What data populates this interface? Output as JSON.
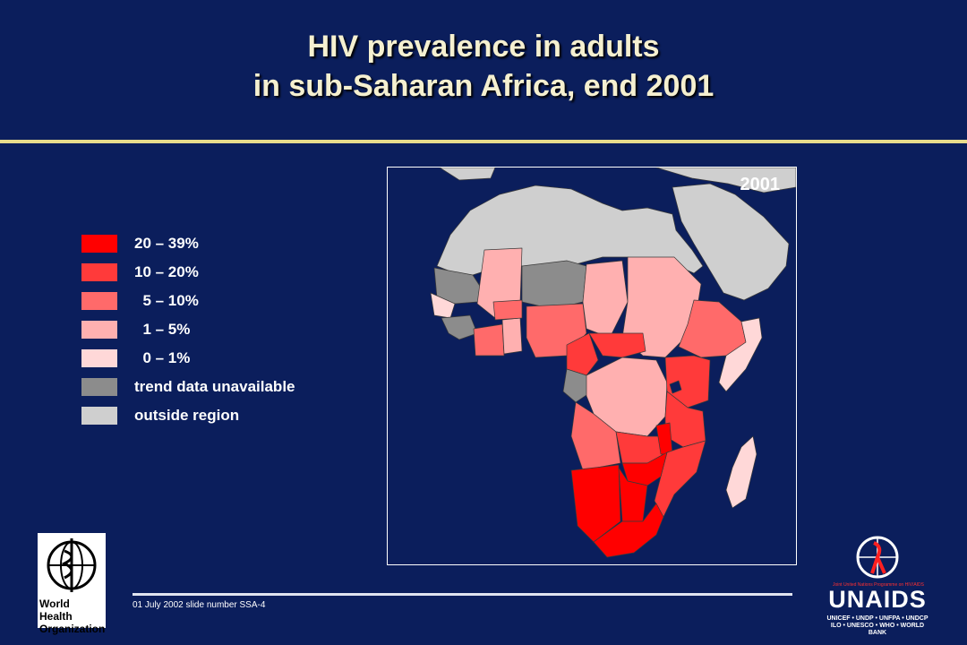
{
  "title": {
    "line1": "HIV prevalence in adults",
    "line2": "in sub-Saharan Africa, end 2001"
  },
  "legend": [
    {
      "label": "20 – 39%",
      "color": "#ff0000"
    },
    {
      "label": "10 – 20%",
      "color": "#ff3a3a"
    },
    {
      "label": "  5 – 10%",
      "color": "#ff6a6a"
    },
    {
      "label": "  1 – 5%",
      "color": "#ffb0b0"
    },
    {
      "label": "  0 – 1%",
      "color": "#ffd8d8"
    },
    {
      "label": "trend data unavailable",
      "color": "#8c8c8c"
    },
    {
      "label": "outside region",
      "color": "#cfcfcf"
    }
  ],
  "map": {
    "year_label": "2001"
  },
  "footer": {
    "slide_text": "01 July 2002 slide number SSA-4"
  },
  "logos": {
    "who_text": "World Health Organization",
    "unaids_text": "UNAIDS",
    "unaids_tagline": "Joint United Nations Programme on HIV/AIDS",
    "unaids_members": "UNICEF • UNDP • UNFPA • UNDCP ILO • UNESCO • WHO • WORLD BANK"
  }
}
